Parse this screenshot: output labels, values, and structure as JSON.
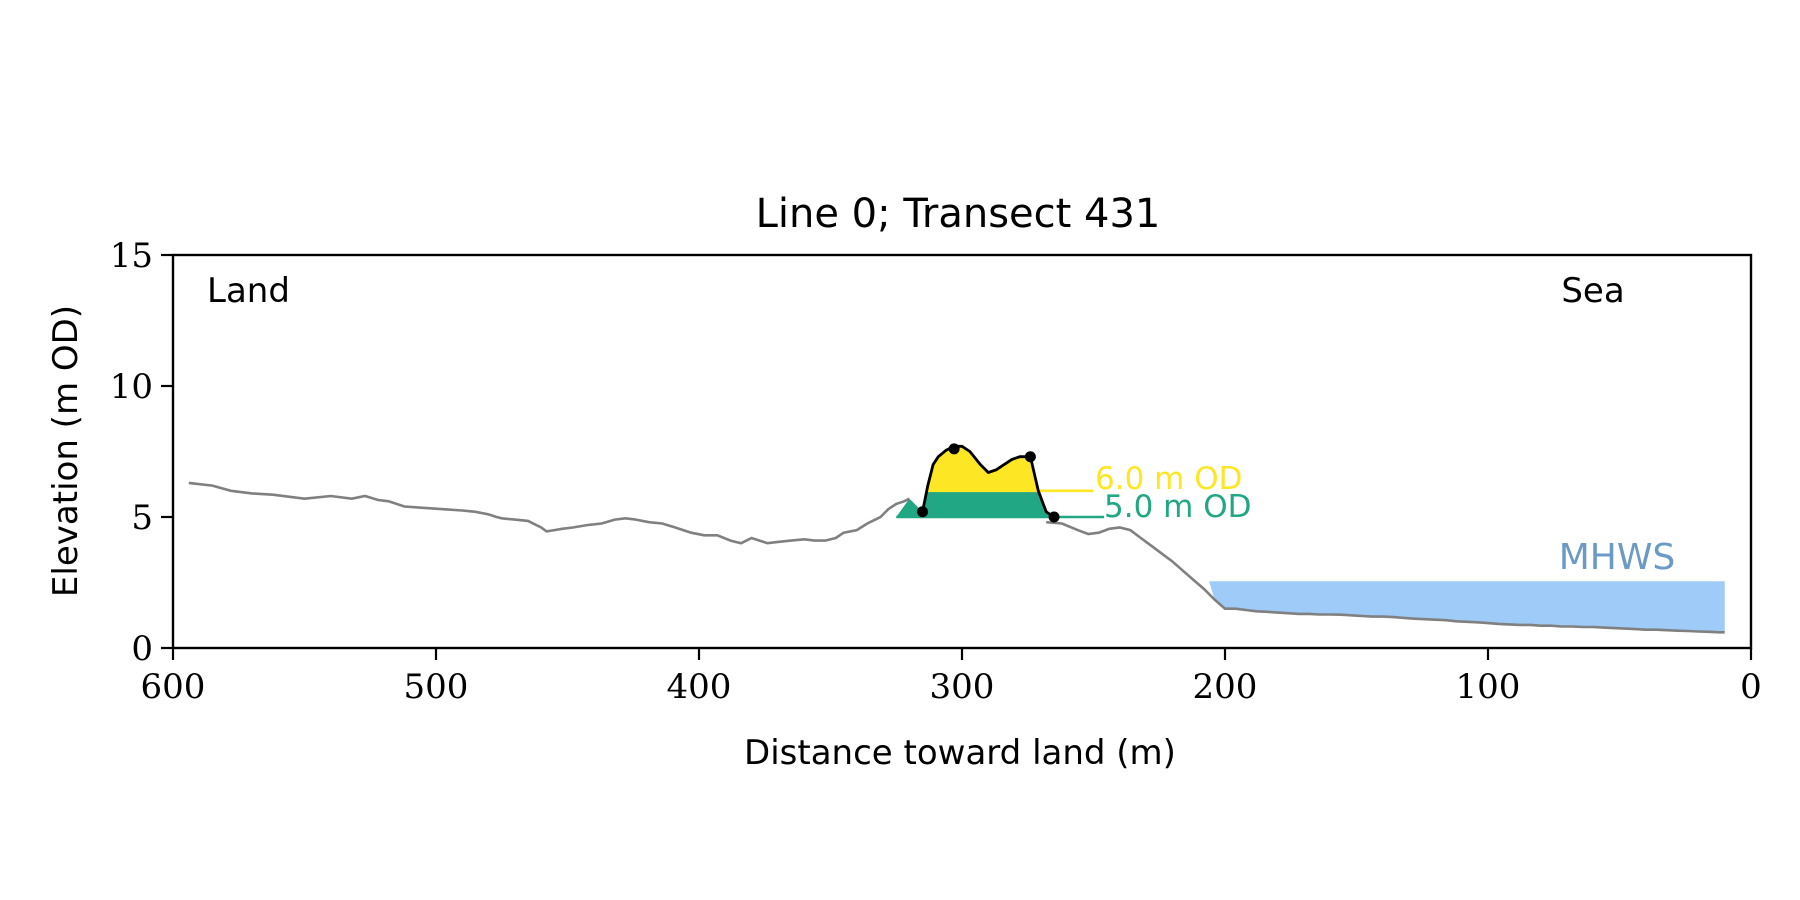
{
  "chart_data": {
    "type": "line",
    "title": "Line 0; Transect 431",
    "xlabel": "Distance toward land (m)",
    "ylabel": "Elevation (m OD)",
    "xlim": [
      600,
      0
    ],
    "ylim": [
      0,
      15
    ],
    "x_ticks": [
      600,
      500,
      400,
      300,
      200,
      100,
      0
    ],
    "y_ticks": [
      0,
      5,
      10,
      15
    ],
    "grid": false,
    "corner_labels": {
      "left": "Land",
      "right": "Sea"
    },
    "colors": {
      "profile": "#808080",
      "dune": "#000000",
      "level_6": "#fde725",
      "level_5": "#21a784",
      "mhws_fill": "#9ecbf7",
      "mhws_text": "#6b9ac4"
    },
    "series": [
      {
        "x": [
          594,
          585,
          578,
          570,
          562,
          550,
          540,
          532,
          527,
          522,
          518,
          512,
          505,
          498,
          490,
          485,
          480,
          477,
          475,
          470,
          465,
          460,
          458,
          455,
          452,
          448,
          442,
          437,
          432,
          428,
          424,
          419,
          414,
          409,
          403,
          398,
          393,
          388,
          384,
          380,
          377,
          374,
          370,
          365,
          360,
          356,
          352,
          348,
          345,
          340,
          336,
          331,
          328,
          325,
          322,
          320
        ],
        "y": [
          6.3,
          6.2,
          6.0,
          5.9,
          5.85,
          5.7,
          5.8,
          5.7,
          5.8,
          5.65,
          5.6,
          5.4,
          5.35,
          5.3,
          5.25,
          5.2,
          5.1,
          5.0,
          4.95,
          4.9,
          4.85,
          4.6,
          4.45,
          4.5,
          4.55,
          4.6,
          4.7,
          4.75,
          4.9,
          4.95,
          4.9,
          4.8,
          4.75,
          4.6,
          4.4,
          4.3,
          4.3,
          4.1,
          4.0,
          4.2,
          4.1,
          4.0,
          4.05,
          4.1,
          4.15,
          4.1,
          4.1,
          4.2,
          4.4,
          4.5,
          4.75,
          5.0,
          5.3,
          5.5,
          5.6,
          5.7
        ]
      },
      {
        "x": [
          268,
          262,
          256,
          252,
          248,
          244,
          240,
          236,
          232,
          228,
          224,
          220,
          216,
          212,
          208,
          204,
          200,
          196,
          192,
          188,
          184,
          180,
          176,
          172,
          168,
          164,
          160,
          156,
          152,
          148,
          144,
          140,
          136,
          132,
          128,
          124,
          120,
          116,
          112,
          108,
          104,
          100,
          96,
          92,
          88,
          84,
          80,
          76,
          72,
          68,
          64,
          60,
          56,
          52,
          48,
          44,
          40,
          36,
          32,
          28,
          24,
          20,
          16,
          12,
          10
        ],
        "y": [
          4.8,
          4.75,
          4.5,
          4.35,
          4.4,
          4.55,
          4.6,
          4.5,
          4.2,
          3.9,
          3.6,
          3.3,
          2.95,
          2.6,
          2.25,
          1.85,
          1.5,
          1.5,
          1.45,
          1.4,
          1.38,
          1.35,
          1.33,
          1.3,
          1.3,
          1.28,
          1.28,
          1.27,
          1.25,
          1.22,
          1.2,
          1.2,
          1.18,
          1.15,
          1.12,
          1.1,
          1.08,
          1.06,
          1.02,
          1.0,
          0.98,
          0.95,
          0.92,
          0.9,
          0.88,
          0.88,
          0.85,
          0.85,
          0.82,
          0.82,
          0.8,
          0.8,
          0.78,
          0.76,
          0.74,
          0.72,
          0.7,
          0.7,
          0.68,
          0.66,
          0.65,
          0.63,
          0.62,
          0.6,
          0.6
        ]
      },
      {
        "x": [
          315,
          313,
          311,
          309,
          306,
          303,
          300,
          297,
          293,
          290,
          287,
          284,
          281,
          278,
          274,
          271,
          268,
          265
        ],
        "y": [
          5.2,
          6.2,
          7.0,
          7.3,
          7.55,
          7.7,
          7.7,
          7.5,
          7.0,
          6.7,
          6.8,
          7.0,
          7.2,
          7.3,
          7.3,
          6.0,
          5.2,
          5.0
        ]
      }
    ],
    "markers": {
      "x": [
        315,
        303,
        274,
        265
      ],
      "y": [
        5.2,
        7.6,
        7.3,
        5.0
      ]
    },
    "thresholds": [
      {
        "label": "6.0 m OD",
        "y": 6.0,
        "x_end": 250
      },
      {
        "label": "5.0 m OD",
        "y": 5.0,
        "x_end": 246
      }
    ],
    "mhws": {
      "label": "MHWS",
      "y": 2.55,
      "x_from": 206,
      "x_to": 10
    }
  }
}
